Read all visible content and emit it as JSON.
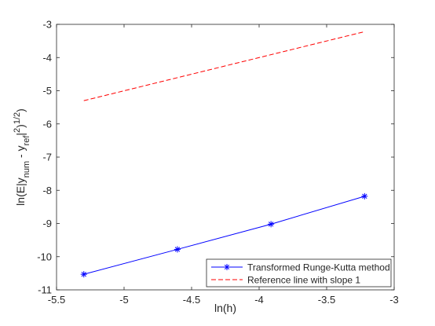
{
  "chart_data": {
    "type": "line",
    "title": "",
    "xlabel": "ln(h)",
    "ylabel_parts": [
      "ln(E|y",
      "num",
      " - y",
      "ref",
      "|",
      "2",
      ")",
      "1/2",
      ")"
    ],
    "xlim": [
      -5.5,
      -3
    ],
    "ylim": [
      -11,
      -3
    ],
    "xticks": [
      -5.5,
      -5,
      -4.5,
      -4,
      -3.5,
      -3
    ],
    "yticks": [
      -11,
      -10,
      -9,
      -8,
      -7,
      -6,
      -5,
      -4,
      -3
    ],
    "grid": false,
    "legend_position": "bottom-right",
    "series": [
      {
        "name": "Transformed Runge-Kutta method",
        "color": "#0000ff",
        "line_style": "solid",
        "marker": "asterisk",
        "x": [
          -5.298,
          -4.605,
          -3.912,
          -3.219
        ],
        "y": [
          -10.53,
          -9.78,
          -9.02,
          -8.18
        ]
      },
      {
        "name": "Reference line with slope 1",
        "color": "#ff0000",
        "line_style": "dashed",
        "marker": "none",
        "x": [
          -5.298,
          -3.219
        ],
        "y": [
          -5.3,
          -3.22
        ]
      }
    ]
  }
}
